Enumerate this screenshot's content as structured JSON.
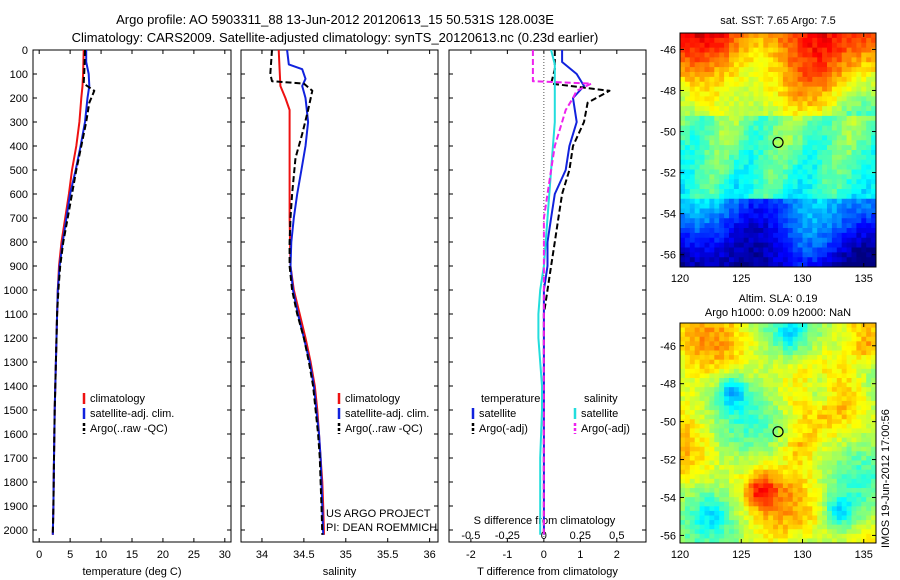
{
  "header": {
    "line1": "Argo profile: AO 5903311_88 13-Jun-2012 20120613_15 50.531S 128.003E",
    "line2": "Climatology: CARS2009. Satellite-adjusted climatology: synTS_20120613.nc (0.23d earlier)"
  },
  "colors": {
    "red": "#ee1111",
    "blue": "#1122dd",
    "black": "#000000",
    "cyan": "#22dddd",
    "magenta": "#ee22ee"
  },
  "depth_ticks": [
    0,
    100,
    200,
    300,
    400,
    500,
    600,
    700,
    800,
    900,
    1000,
    1100,
    1200,
    1300,
    1400,
    1500,
    1600,
    1700,
    1800,
    1900,
    2000
  ],
  "legends": {
    "temp": [
      "climatology",
      "satellite-adj. clim.",
      "Argo(..raw -QC)"
    ],
    "sal": [
      "climatology",
      "satellite-adj. clim.",
      "Argo(..raw -QC)"
    ],
    "diff_headers": [
      "temperature",
      "salinity"
    ],
    "diff_temp": [
      "satellite",
      "Argo(-adj)"
    ],
    "diff_sal": [
      "satellite",
      "Argo(-adj)"
    ]
  },
  "credits": {
    "line1": "US ARGO PROJECT",
    "line2": "PI: DEAN ROEMMICH"
  },
  "map_titles": {
    "sst": "sat. SST: 7.65 Argo: 7.5",
    "sla1": "Altim. SLA: 0.19",
    "sla2": "Argo h1000: 0.09 h2000: NaN"
  },
  "map_ticks": {
    "lat": [
      "-46",
      "-48",
      "-50",
      "-52",
      "-54",
      "-56"
    ],
    "lon": [
      "120",
      "125",
      "130",
      "135"
    ]
  },
  "timestamp": "IMOS 19-Jun-2012 17:00:56",
  "chart_data": [
    {
      "type": "line",
      "xlabel": "temperature (deg C)",
      "ylim": [
        2050,
        0
      ],
      "xlim": [
        -1,
        31
      ],
      "xticks": [
        "0",
        "5",
        "10",
        "15",
        "20",
        "25",
        "30"
      ],
      "x_tick_values": [
        0,
        5,
        10,
        15,
        20,
        25,
        30
      ],
      "series": [
        {
          "name": "climatology",
          "color": "red",
          "dash": "solid",
          "points": [
            [
              7.2,
              0
            ],
            [
              7.1,
              100
            ],
            [
              7,
              150
            ],
            [
              6.8,
              200
            ],
            [
              6.5,
              300
            ],
            [
              6,
              400
            ],
            [
              5.3,
              500
            ],
            [
              4.8,
              600
            ],
            [
              4.2,
              700
            ],
            [
              3.6,
              800
            ],
            [
              3.2,
              900
            ],
            [
              3,
              1000
            ],
            [
              2.9,
              1100
            ],
            [
              2.8,
              1200
            ],
            [
              2.7,
              1300
            ],
            [
              2.6,
              1400
            ],
            [
              2.5,
              1500
            ],
            [
              2.4,
              1700
            ],
            [
              2.3,
              1900
            ],
            [
              2.2,
              2020
            ]
          ]
        },
        {
          "name": "satellite-adj. clim.",
          "color": "blue",
          "dash": "solid",
          "points": [
            [
              7.6,
              0
            ],
            [
              7.6,
              50
            ],
            [
              8,
              100
            ],
            [
              8.1,
              150
            ],
            [
              7.8,
              200
            ],
            [
              7.4,
              300
            ],
            [
              6.7,
              400
            ],
            [
              5.9,
              500
            ],
            [
              5,
              600
            ],
            [
              4.4,
              700
            ],
            [
              3.8,
              800
            ],
            [
              3.3,
              900
            ],
            [
              3,
              1000
            ],
            [
              2.9,
              1100
            ],
            [
              2.8,
              1200
            ],
            [
              2.7,
              1300
            ],
            [
              2.6,
              1400
            ],
            [
              2.5,
              1500
            ],
            [
              2.4,
              1700
            ],
            [
              2.3,
              1900
            ],
            [
              2.2,
              2020
            ]
          ]
        },
        {
          "name": "Argo(..raw -QC)",
          "color": "black",
          "dash": "dashed",
          "points": [
            [
              7.4,
              0
            ],
            [
              7.3,
              80
            ],
            [
              7.2,
              140
            ],
            [
              8.9,
              170
            ],
            [
              8.1,
              220
            ],
            [
              7.6,
              300
            ],
            [
              6.8,
              400
            ],
            [
              6,
              500
            ],
            [
              5.3,
              600
            ],
            [
              4.6,
              700
            ],
            [
              3.9,
              800
            ],
            [
              3.4,
              900
            ],
            [
              3.1,
              1000
            ],
            [
              2.9,
              1100
            ],
            [
              2.8,
              1200
            ],
            [
              2.7,
              1300
            ],
            [
              2.6,
              1400
            ],
            [
              2.5,
              1500
            ],
            [
              2.4,
              1700
            ],
            [
              2.3,
              1900
            ],
            [
              2.2,
              2020
            ]
          ]
        }
      ]
    },
    {
      "type": "line",
      "xlabel": "salinity",
      "ylim": [
        2050,
        0
      ],
      "xlim": [
        33.75,
        36.1
      ],
      "xticks": [
        "34",
        "34.5",
        "35",
        "35.5",
        "36"
      ],
      "x_tick_values": [
        34,
        34.5,
        35,
        35.5,
        36
      ],
      "series": [
        {
          "name": "climatology",
          "color": "red",
          "dash": "solid",
          "points": [
            [
              34.2,
              0
            ],
            [
              34.21,
              80
            ],
            [
              34.22,
              150
            ],
            [
              34.28,
              200
            ],
            [
              34.33,
              250
            ],
            [
              34.33,
              300
            ],
            [
              34.33,
              500
            ],
            [
              34.33,
              700
            ],
            [
              34.34,
              900
            ],
            [
              34.38,
              1000
            ],
            [
              34.45,
              1100
            ],
            [
              34.52,
              1200
            ],
            [
              34.58,
              1300
            ],
            [
              34.63,
              1400
            ],
            [
              34.66,
              1500
            ],
            [
              34.68,
              1600
            ],
            [
              34.7,
              1700
            ],
            [
              34.72,
              1800
            ],
            [
              34.73,
              1900
            ],
            [
              34.74,
              2020
            ]
          ]
        },
        {
          "name": "satellite-adj. clim.",
          "color": "blue",
          "dash": "solid",
          "points": [
            [
              34.3,
              0
            ],
            [
              34.32,
              60
            ],
            [
              34.48,
              80
            ],
            [
              34.52,
              120
            ],
            [
              34.48,
              150
            ],
            [
              34.52,
              200
            ],
            [
              34.55,
              300
            ],
            [
              34.52,
              400
            ],
            [
              34.47,
              500
            ],
            [
              34.42,
              600
            ],
            [
              34.38,
              700
            ],
            [
              34.35,
              800
            ],
            [
              34.34,
              900
            ],
            [
              34.37,
              1000
            ],
            [
              34.43,
              1100
            ],
            [
              34.5,
              1200
            ],
            [
              34.57,
              1300
            ],
            [
              34.62,
              1400
            ],
            [
              34.65,
              1500
            ],
            [
              34.68,
              1600
            ],
            [
              34.7,
              1700
            ],
            [
              34.71,
              1800
            ],
            [
              34.72,
              1900
            ],
            [
              34.73,
              2020
            ]
          ]
        },
        {
          "name": "Argo(..raw -QC)",
          "color": "black",
          "dash": "dashed",
          "points": [
            [
              34.12,
              0
            ],
            [
              34.1,
              100
            ],
            [
              34.12,
              130
            ],
            [
              34.5,
              140
            ],
            [
              34.6,
              170
            ],
            [
              34.55,
              250
            ],
            [
              34.48,
              350
            ],
            [
              34.4,
              450
            ],
            [
              34.36,
              600
            ],
            [
              34.34,
              700
            ],
            [
              34.33,
              800
            ],
            [
              34.33,
              900
            ],
            [
              34.36,
              1000
            ],
            [
              34.42,
              1100
            ],
            [
              34.5,
              1200
            ],
            [
              34.56,
              1300
            ],
            [
              34.61,
              1400
            ],
            [
              34.64,
              1500
            ],
            [
              34.67,
              1600
            ],
            [
              34.69,
              1700
            ],
            [
              34.7,
              1800
            ],
            [
              34.71,
              1900
            ],
            [
              34.72,
              2020
            ]
          ]
        }
      ]
    },
    {
      "type": "line",
      "xlabel": "T difference from climatology",
      "xlabel_top": "S difference from climatology",
      "ylim": [
        2050,
        0
      ],
      "xlim": [
        -2.6,
        2.8
      ],
      "xticks": [
        "-2",
        "-1",
        "0",
        "1",
        "2"
      ],
      "x_tick_values": [
        -2,
        -1,
        0,
        1,
        2
      ],
      "sticks": [
        "-0.5",
        "-0.25",
        "0",
        "0.25",
        "0.5"
      ],
      "s_tick_values": [
        -2,
        -1,
        0,
        1,
        2
      ],
      "series": [
        {
          "name": "satellite",
          "group": "temperature",
          "color": "blue",
          "dash": "solid",
          "points": [
            [
              0.5,
              0
            ],
            [
              0.5,
              50
            ],
            [
              0.9,
              100
            ],
            [
              1.1,
              150
            ],
            [
              0.8,
              200
            ],
            [
              0.9,
              300
            ],
            [
              0.7,
              400
            ],
            [
              0.6,
              500
            ],
            [
              0.3,
              600
            ],
            [
              0.2,
              700
            ],
            [
              0.1,
              800
            ],
            [
              0.1,
              900
            ],
            [
              0,
              1000
            ],
            [
              0,
              1100
            ],
            [
              0,
              1200
            ],
            [
              0,
              1300
            ],
            [
              0,
              1400
            ],
            [
              0,
              1500
            ],
            [
              0,
              1700
            ],
            [
              0,
              1900
            ],
            [
              0,
              2020
            ]
          ]
        },
        {
          "name": "Argo(-adj)",
          "group": "temperature",
          "color": "black",
          "dash": "dashed",
          "points": [
            [
              0.3,
              0
            ],
            [
              0.3,
              80
            ],
            [
              0.2,
              140
            ],
            [
              1.8,
              170
            ],
            [
              1.2,
              220
            ],
            [
              1.1,
              300
            ],
            [
              0.8,
              400
            ],
            [
              0.7,
              500
            ],
            [
              0.5,
              600
            ],
            [
              0.4,
              700
            ],
            [
              0.3,
              800
            ],
            [
              0.2,
              900
            ],
            [
              0.1,
              1000
            ],
            [
              0,
              1100
            ],
            [
              0,
              1200
            ],
            [
              0,
              1300
            ],
            [
              0,
              1400
            ],
            [
              0,
              1500
            ],
            [
              0,
              1700
            ],
            [
              0,
              1900
            ],
            [
              0,
              2020
            ]
          ]
        },
        {
          "name": "satellite",
          "group": "salinity",
          "color": "cyan",
          "dash": "solid",
          "points": [
            [
              0.2,
              0
            ],
            [
              0.3,
              60
            ],
            [
              0.3,
              120
            ],
            [
              0.3,
              200
            ],
            [
              0.3,
              300
            ],
            [
              0.2,
              500
            ],
            [
              0.1,
              700
            ],
            [
              0,
              900
            ],
            [
              -0.1,
              1000
            ],
            [
              -0.15,
              1100
            ],
            [
              -0.15,
              1200
            ],
            [
              -0.1,
              1300
            ],
            [
              -0.05,
              1400
            ],
            [
              -0.05,
              1500
            ],
            [
              -0.1,
              1700
            ],
            [
              -0.1,
              1900
            ],
            [
              -0.1,
              2020
            ]
          ]
        },
        {
          "name": "Argo(-adj)",
          "group": "salinity",
          "color": "magenta",
          "dash": "dashed",
          "points": [
            [
              -0.3,
              0
            ],
            [
              -0.3,
              100
            ],
            [
              -0.3,
              130
            ],
            [
              1.3,
              140
            ],
            [
              0.9,
              170
            ],
            [
              0.8,
              200
            ],
            [
              0.6,
              250
            ],
            [
              0.5,
              300
            ],
            [
              0.3,
              400
            ],
            [
              0.2,
              500
            ],
            [
              0.1,
              600
            ],
            [
              0,
              700
            ],
            [
              0,
              800
            ],
            [
              0,
              900
            ],
            [
              0,
              1000
            ],
            [
              0,
              1100
            ],
            [
              0,
              1200
            ],
            [
              0,
              1300
            ],
            [
              0,
              1400
            ],
            [
              0,
              1500
            ],
            [
              0,
              1700
            ],
            [
              0,
              1900
            ],
            [
              0,
              2020
            ]
          ]
        }
      ]
    }
  ]
}
